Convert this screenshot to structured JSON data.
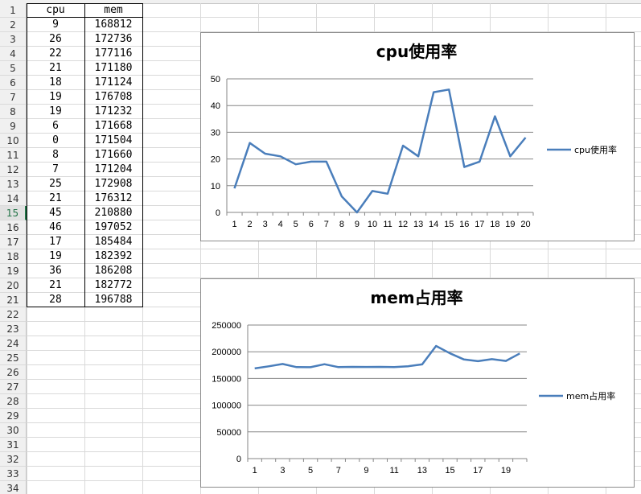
{
  "sheet": {
    "row_numbers": [
      "1",
      "2",
      "3",
      "4",
      "5",
      "6",
      "7",
      "8",
      "9",
      "10",
      "11",
      "12",
      "13",
      "14",
      "15",
      "16",
      "17",
      "18",
      "19",
      "20",
      "21",
      "22",
      "23",
      "24",
      "25",
      "26",
      "27",
      "28",
      "29",
      "30",
      "31",
      "32",
      "33",
      "34"
    ],
    "selected_row": "15",
    "headers": [
      "cpu",
      "mem"
    ],
    "rows": [
      [
        "9",
        "168812"
      ],
      [
        "26",
        "172736"
      ],
      [
        "22",
        "177116"
      ],
      [
        "21",
        "171180"
      ],
      [
        "18",
        "171124"
      ],
      [
        "19",
        "176708"
      ],
      [
        "19",
        "171232"
      ],
      [
        "6",
        "171668"
      ],
      [
        "0",
        "171504"
      ],
      [
        "8",
        "171660"
      ],
      [
        "7",
        "171204"
      ],
      [
        "25",
        "172908"
      ],
      [
        "21",
        "176312"
      ],
      [
        "45",
        "210880"
      ],
      [
        "46",
        "197052"
      ],
      [
        "17",
        "185484"
      ],
      [
        "19",
        "182392"
      ],
      [
        "36",
        "186208"
      ],
      [
        "21",
        "182772"
      ],
      [
        "28",
        "196788"
      ]
    ]
  },
  "colors": {
    "series": "#4a7ebb",
    "grid": "#868686",
    "selected": "#217346"
  },
  "chart_data": [
    {
      "type": "line",
      "title": "cpu使用率",
      "x": [
        1,
        2,
        3,
        4,
        5,
        6,
        7,
        8,
        9,
        10,
        11,
        12,
        13,
        14,
        15,
        16,
        17,
        18,
        19,
        20
      ],
      "x_tick_labels": [
        "1",
        "2",
        "3",
        "4",
        "5",
        "6",
        "7",
        "8",
        "9",
        "10",
        "11",
        "12",
        "13",
        "14",
        "15",
        "16",
        "17",
        "18",
        "19",
        "20"
      ],
      "series": [
        {
          "name": "cpu使用率",
          "values": [
            9,
            26,
            22,
            21,
            18,
            19,
            19,
            6,
            0,
            8,
            7,
            25,
            21,
            45,
            46,
            17,
            19,
            36,
            21,
            28
          ]
        }
      ],
      "ylim": [
        0,
        50
      ],
      "y_ticks": [
        0,
        10,
        20,
        30,
        40,
        50
      ],
      "y_tick_labels": [
        "0",
        "10",
        "20",
        "30",
        "40",
        "50"
      ],
      "grid": true,
      "legend": "right"
    },
    {
      "type": "line",
      "title": "mem占用率",
      "x": [
        1,
        2,
        3,
        4,
        5,
        6,
        7,
        8,
        9,
        10,
        11,
        12,
        13,
        14,
        15,
        16,
        17,
        18,
        19,
        20
      ],
      "x_tick_labels": [
        "1",
        "3",
        "5",
        "7",
        "9",
        "11",
        "13",
        "15",
        "17",
        "19"
      ],
      "series": [
        {
          "name": "mem占用率",
          "values": [
            168812,
            172736,
            177116,
            171180,
            171124,
            176708,
            171232,
            171668,
            171504,
            171660,
            171204,
            172908,
            176312,
            210880,
            197052,
            185484,
            182392,
            186208,
            182772,
            196788
          ]
        }
      ],
      "ylim": [
        0,
        250000
      ],
      "y_ticks": [
        0,
        50000,
        100000,
        150000,
        200000,
        250000
      ],
      "y_tick_labels": [
        "0",
        "50000",
        "100000",
        "150000",
        "200000",
        "250000"
      ],
      "grid": true,
      "legend": "right"
    }
  ]
}
